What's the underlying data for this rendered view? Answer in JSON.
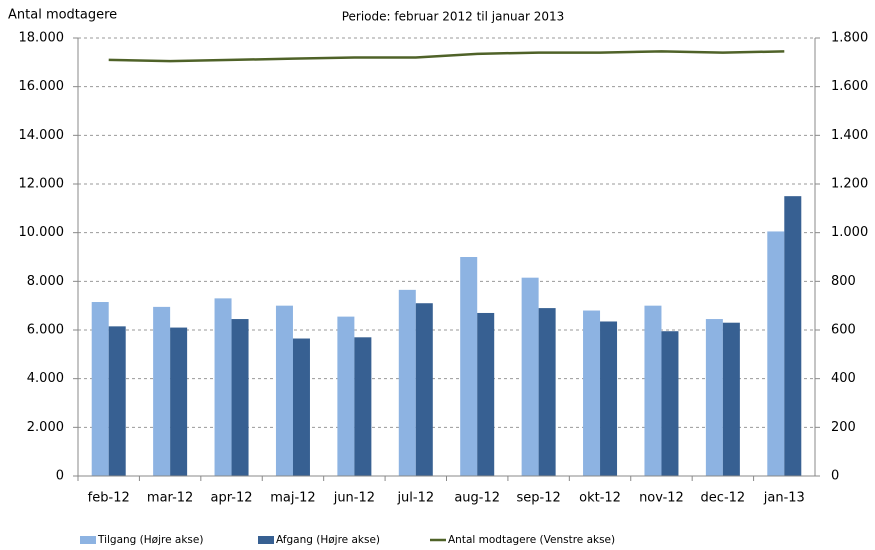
{
  "chart_data": {
    "type": "bar_line",
    "title": "Periode: februar 2012 til januar 2013",
    "y_label": "Antal modtagere",
    "categories": [
      "feb-12",
      "mar-12",
      "apr-12",
      "maj-12",
      "jun-12",
      "jul-12",
      "aug-12",
      "sep-12",
      "okt-12",
      "nov-12",
      "dec-12",
      "jan-13"
    ],
    "series": [
      {
        "name": "Tilgang (Højre akse)",
        "type": "bar",
        "axis": "y2",
        "color": "#8db3e2",
        "values": [
          715,
          695,
          730,
          700,
          655,
          765,
          900,
          815,
          680,
          700,
          645,
          1005
        ]
      },
      {
        "name": "Afgang (Højre akse)",
        "type": "bar",
        "axis": "y2",
        "color": "#376092",
        "values": [
          615,
          610,
          645,
          565,
          570,
          710,
          670,
          690,
          635,
          595,
          630,
          1150
        ]
      },
      {
        "name": "Antal modtagere (Venstre akse)",
        "type": "line",
        "axis": "y",
        "color": "#4f6228",
        "values": [
          17100,
          17050,
          17100,
          17150,
          17200,
          17200,
          17350,
          17400,
          17400,
          17450,
          17400,
          17450
        ]
      }
    ],
    "ylim": [
      0,
      18000
    ],
    "yticks": [
      0,
      {
        "value": 2000,
        "label": "2.000"
      },
      {
        "value": 4000,
        "label": "4.000"
      },
      {
        "value": 6000,
        "label": "6.000"
      },
      {
        "value": 8000,
        "label": "8.000"
      },
      {
        "value": 10000,
        "label": "10.000"
      },
      {
        "value": 12000,
        "label": "12.000"
      },
      {
        "value": 14000,
        "label": "14.000"
      },
      {
        "value": 16000,
        "label": "16.000"
      },
      {
        "value": 18000,
        "label": "18.000"
      }
    ],
    "y2lim": [
      0,
      1800
    ],
    "y2ticks": [
      0,
      200,
      400,
      600,
      800,
      {
        "value": 1000,
        "label": "1.000"
      },
      {
        "value": 1200,
        "label": "1.200"
      },
      {
        "value": 1400,
        "label": "1.400"
      },
      {
        "value": 1600,
        "label": "1.600"
      },
      {
        "value": 1800,
        "label": "1.800"
      }
    ],
    "grid": true
  }
}
